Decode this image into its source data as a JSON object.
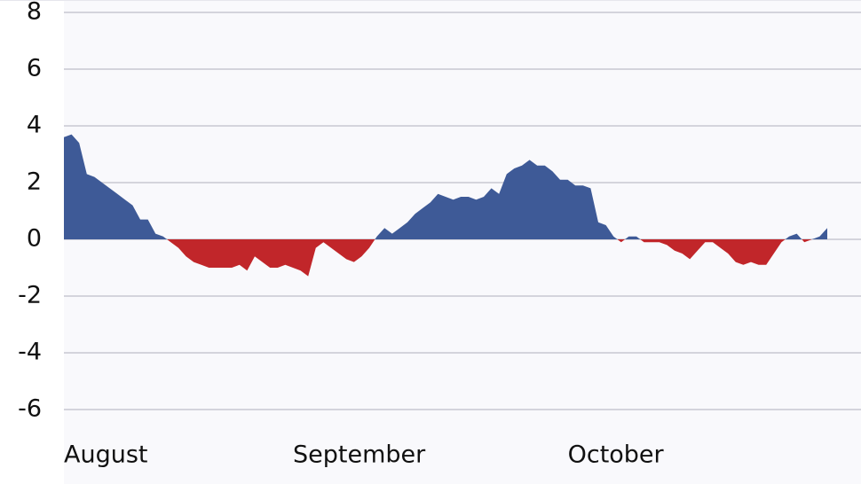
{
  "chart_data": {
    "type": "area",
    "categories": [
      "August",
      null,
      null,
      null,
      null,
      null,
      null,
      null,
      null,
      null,
      null,
      null,
      null,
      null,
      null,
      null,
      null,
      null,
      null,
      null,
      null,
      null,
      null,
      null,
      null,
      null,
      null,
      null,
      null,
      null,
      "September",
      null,
      null,
      null,
      null,
      null,
      null,
      null,
      null,
      null,
      null,
      null,
      null,
      null,
      null,
      null,
      null,
      null,
      null,
      null,
      null,
      null,
      null,
      null,
      null,
      null,
      null,
      null,
      null,
      null,
      null,
      null,
      null,
      null,
      null,
      null,
      "October",
      null,
      null,
      null,
      null,
      null,
      null,
      null,
      null,
      null,
      null,
      null,
      null,
      null,
      null,
      null,
      null,
      null,
      null,
      null,
      null,
      null,
      null,
      null,
      null,
      null,
      null,
      null,
      null,
      null,
      null,
      null,
      null,
      null,
      null
    ],
    "values": [
      3.6,
      3.7,
      3.4,
      2.3,
      2.2,
      2.0,
      1.8,
      1.6,
      1.4,
      1.2,
      0.7,
      0.7,
      0.2,
      0.1,
      -0.1,
      -0.3,
      -0.6,
      -0.8,
      -0.9,
      -1.0,
      -1.0,
      -1.0,
      -1.0,
      -0.9,
      -1.1,
      -0.6,
      -0.8,
      -1.0,
      -1.0,
      -0.9,
      -1.0,
      -1.1,
      -1.3,
      -0.3,
      -0.1,
      -0.3,
      -0.5,
      -0.7,
      -0.8,
      -0.6,
      -0.3,
      0.1,
      0.4,
      0.2,
      0.4,
      0.6,
      0.9,
      1.1,
      1.3,
      1.6,
      1.5,
      1.4,
      1.5,
      1.5,
      1.4,
      1.5,
      1.8,
      1.6,
      2.3,
      2.5,
      2.6,
      2.8,
      2.6,
      2.6,
      2.4,
      2.1,
      2.1,
      1.9,
      1.9,
      1.8,
      0.6,
      0.5,
      0.1,
      -0.1,
      0.1,
      0.1,
      -0.1,
      -0.1,
      -0.1,
      -0.2,
      -0.4,
      -0.5,
      -0.7,
      -0.4,
      -0.1,
      -0.1,
      -0.3,
      -0.5,
      -0.8,
      -0.9,
      -0.8,
      -0.9,
      -0.9,
      -0.5,
      -0.1,
      0.1,
      0.2,
      -0.1,
      0.0,
      0.1,
      0.4
    ],
    "color": "#3e5a97",
    "negative_color": "#c1262a",
    "ylim": [
      -7,
      8
    ],
    "yticks": [
      -6,
      -4,
      -2,
      0,
      2,
      4,
      6,
      8
    ],
    "grid": true
  }
}
